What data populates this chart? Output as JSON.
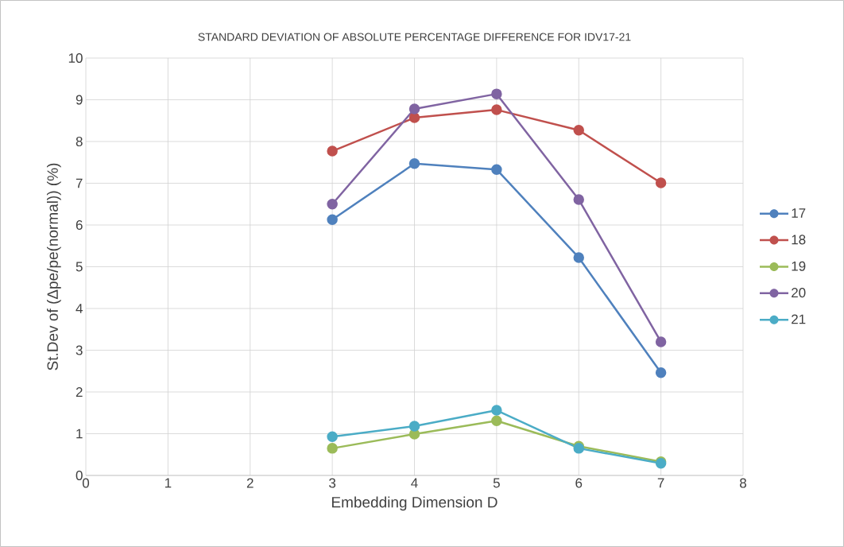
{
  "chart_data": {
    "type": "line",
    "title": "STANDARD DEVIATION OF ABSOLUTE PERCENTAGE DIFFERENCE FOR IDV17-21",
    "xlabel": "Embedding Dimension D",
    "ylabel": "St.Dev of (Δpe/pe(normal)) (%)",
    "x": [
      3,
      4,
      5,
      6,
      7
    ],
    "series": [
      {
        "name": "17",
        "color": "#4f81bd",
        "values": [
          6.13,
          7.47,
          7.33,
          5.22,
          2.46
        ]
      },
      {
        "name": "18",
        "color": "#c0504d",
        "values": [
          7.77,
          8.57,
          8.76,
          8.27,
          7.01
        ]
      },
      {
        "name": "19",
        "color": "#9bbb59",
        "values": [
          0.65,
          0.99,
          1.31,
          0.7,
          0.33
        ]
      },
      {
        "name": "20",
        "color": "#8064a2",
        "values": [
          6.5,
          8.78,
          9.14,
          6.61,
          3.2
        ]
      },
      {
        "name": "21",
        "color": "#4bacc6",
        "values": [
          0.93,
          1.18,
          1.56,
          0.65,
          0.29
        ]
      }
    ],
    "xlim": [
      0,
      8
    ],
    "xticks": [
      0,
      1,
      2,
      3,
      4,
      5,
      6,
      7,
      8
    ],
    "ylim": [
      0,
      10
    ],
    "yticks": [
      0,
      1,
      2,
      3,
      4,
      5,
      6,
      7,
      8,
      9,
      10
    ],
    "grid": true,
    "legend": "right",
    "marker": "circle",
    "line_style": "solid"
  }
}
